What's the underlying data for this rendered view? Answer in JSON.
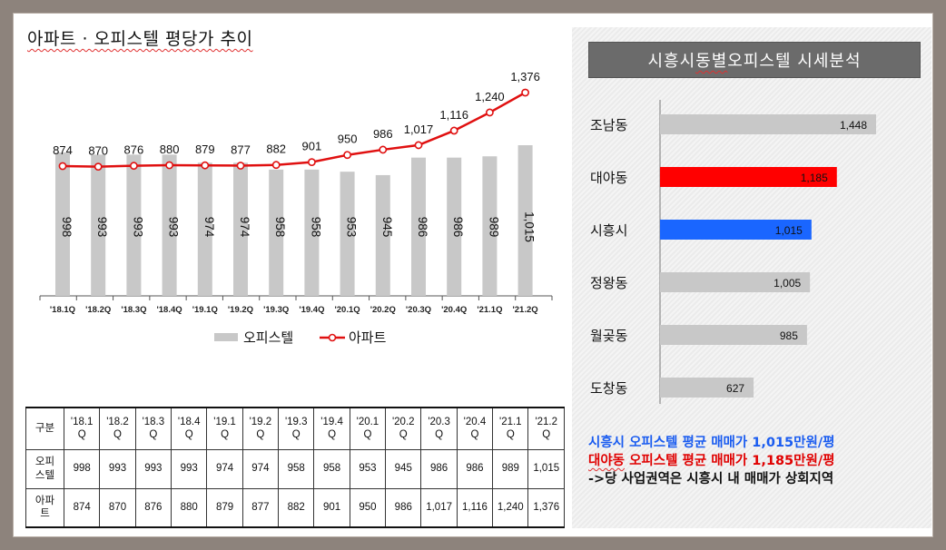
{
  "left": {
    "title": "아파트 · 오피스텔 평당가 추이"
  },
  "chart_data": [
    {
      "type": "bar+line",
      "categories": [
        "'18.1Q",
        "'18.2Q",
        "'18.3Q",
        "'18.4Q",
        "'19.1Q",
        "'19.2Q",
        "'19.3Q",
        "'19.4Q",
        "'20.1Q",
        "'20.2Q",
        "'20.3Q",
        "'20.4Q",
        "'21.1Q",
        "'21.2Q"
      ],
      "series": [
        {
          "name": "오피스텔",
          "kind": "bar",
          "color": "#c8c8c8",
          "values": [
            998,
            993,
            993,
            993,
            974,
            974,
            958,
            958,
            953,
            945,
            986,
            986,
            989,
            1015
          ],
          "labels": [
            "998",
            "993",
            "993",
            "993",
            "974",
            "974",
            "958",
            "958",
            "953",
            "945",
            "986",
            "986",
            "989",
            "1,015"
          ]
        },
        {
          "name": "아파트",
          "kind": "line",
          "color": "#e01010",
          "values": [
            874,
            870,
            876,
            880,
            879,
            877,
            882,
            901,
            950,
            986,
            1017,
            1116,
            1240,
            1376
          ],
          "labels": [
            "874",
            "870",
            "876",
            "880",
            "879",
            "877",
            "882",
            "901",
            "950",
            "986",
            "1,017",
            "1,116",
            "1,240",
            "1,376"
          ]
        }
      ],
      "legend": "bottom"
    },
    {
      "type": "bar",
      "orientation": "horizontal",
      "categories": [
        "조남동",
        "대야동",
        "시흥시",
        "정왕동",
        "월곶동",
        "도창동"
      ],
      "values": [
        1448,
        1185,
        1015,
        1005,
        985,
        627
      ],
      "labels": [
        "1,448",
        "1,185",
        "1,015",
        "1,005",
        "985",
        "627"
      ],
      "colors": [
        "#c8c8c8",
        "#ff0000",
        "#1a66ff",
        "#c8c8c8",
        "#c8c8c8",
        "#c8c8c8"
      ]
    }
  ],
  "table": {
    "header_label": "구분",
    "columns": [
      "'18.1\nQ",
      "'18.2\nQ",
      "'18.3\nQ",
      "'18.4\nQ",
      "'19.1\nQ",
      "'19.2\nQ",
      "'19.3\nQ",
      "'19.4\nQ",
      "'20.1\nQ",
      "'20.2\nQ",
      "'20.3\nQ",
      "'20.4\nQ",
      "'21.1\nQ",
      "'21.2\nQ"
    ],
    "rows": [
      {
        "label": "오피\n스텔",
        "cells": [
          "998",
          "993",
          "993",
          "993",
          "974",
          "974",
          "958",
          "958",
          "953",
          "945",
          "986",
          "986",
          "989",
          "1,015"
        ]
      },
      {
        "label": "아파\n트",
        "cells": [
          "874",
          "870",
          "876",
          "880",
          "879",
          "877",
          "882",
          "901",
          "950",
          "986",
          "1,017",
          "1,116",
          "1,240",
          "1,376"
        ]
      }
    ]
  },
  "right": {
    "title_pre": "시흥시 ",
    "title_ul": "동별",
    "title_post": " 오피스텔 시세분석",
    "line1": "시흥시 오피스텔 평균 매매가 1,015만원/평",
    "line2_ul": "대야동",
    "line2_rest": " 오피스텔 평균 매매가 1,185만원/평",
    "line3": "->당 사업권역은 시흥시 내 매매가 상회지역"
  }
}
